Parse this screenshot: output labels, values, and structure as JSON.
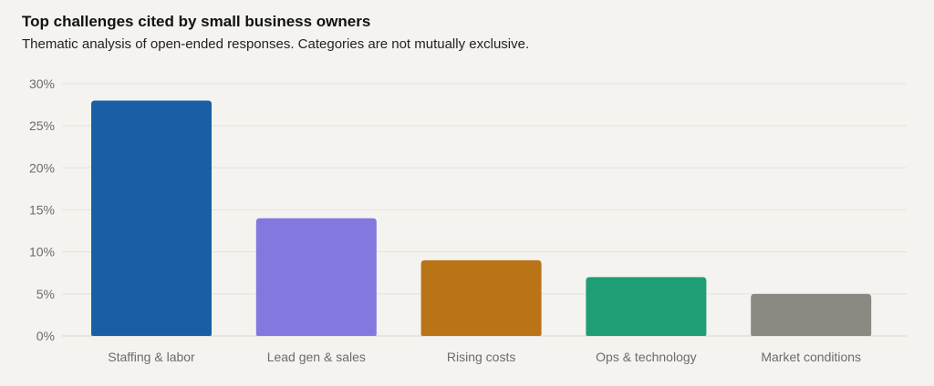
{
  "chart_data": {
    "type": "bar",
    "title": "Top challenges cited by small business owners",
    "subtitle": "Thematic analysis of open-ended responses. Categories are not mutually exclusive.",
    "xlabel": "",
    "ylabel": "",
    "ylim": [
      0,
      30
    ],
    "yticks": [
      0,
      5,
      10,
      15,
      20,
      25,
      30
    ],
    "ytick_labels": [
      "0%",
      "5%",
      "10%",
      "15%",
      "20%",
      "25%",
      "30%"
    ],
    "grid": true,
    "legend": "none",
    "categories": [
      "Staffing & labor",
      "Lead gen & sales",
      "Rising costs",
      "Ops & technology",
      "Market conditions"
    ],
    "values": [
      28,
      14,
      9,
      7,
      5
    ],
    "colors": [
      "#1a5fa6",
      "#8278df",
      "#b97418",
      "#1f9e76",
      "#8a8a82"
    ]
  }
}
